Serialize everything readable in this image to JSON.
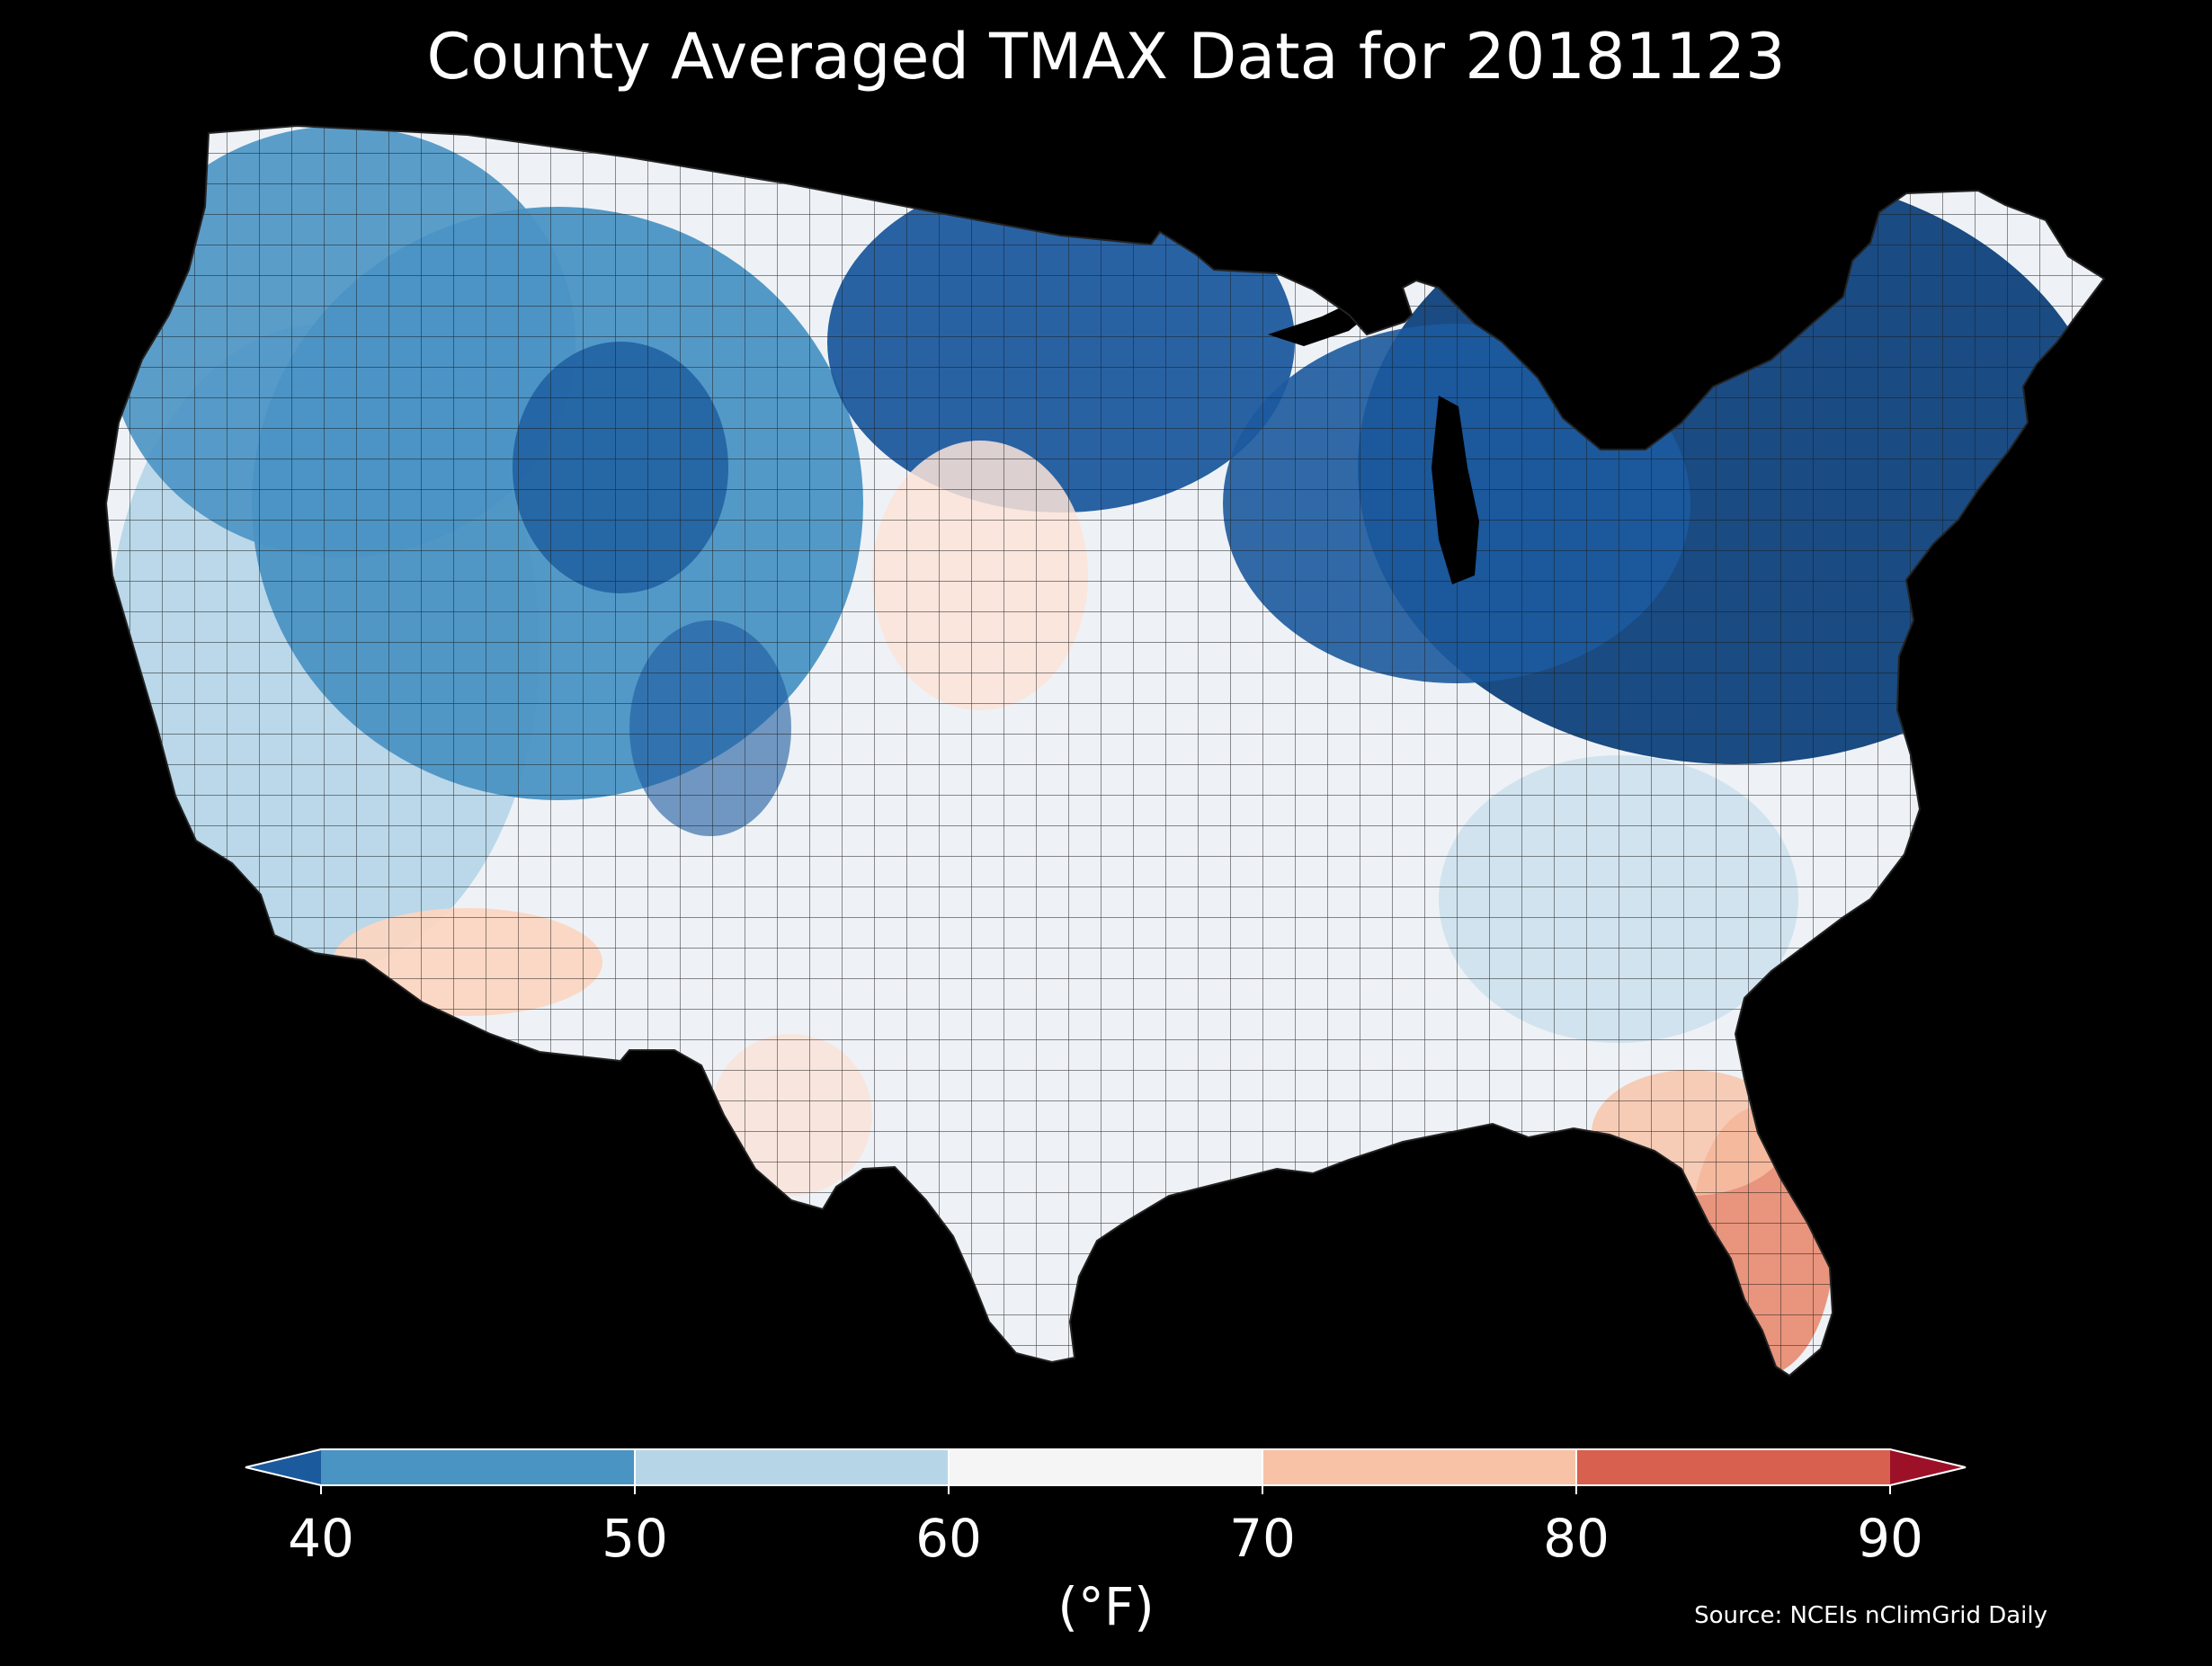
{
  "title": "County Averaged TMAX Data for 20181123",
  "source": "Source: NCEIs nClimGrid Daily",
  "colorbar": {
    "label": "(°F)",
    "ticks": [
      "40",
      "50",
      "60",
      "70",
      "80",
      "90"
    ],
    "bins": [
      {
        "min": null,
        "max": 40,
        "color": "#1c5a9e"
      },
      {
        "min": 40,
        "max": 50,
        "color": "#4a94c4"
      },
      {
        "min": 50,
        "max": 60,
        "color": "#b6d6e8"
      },
      {
        "min": 60,
        "max": 70,
        "color": "#f5f5f5"
      },
      {
        "min": 70,
        "max": 80,
        "color": "#f8c2a6"
      },
      {
        "min": 80,
        "max": 90,
        "color": "#d8604f"
      },
      {
        "min": 90,
        "max": null,
        "color": "#9c1128"
      }
    ]
  },
  "colors": {
    "background": "#000000",
    "county_border": "#1a1a1a",
    "text": "#ffffff"
  }
}
